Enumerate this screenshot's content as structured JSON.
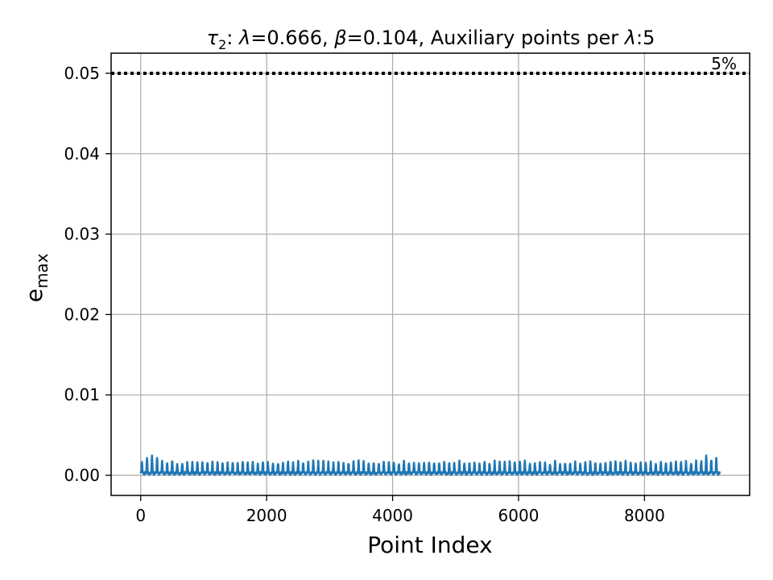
{
  "chart_data": {
    "type": "line",
    "title": {
      "tau_symbol": "τ",
      "tau_subscript": "2",
      "lambda_symbol": "λ",
      "beta_symbol": "β",
      "part_colon": ": ",
      "part_lambda_value": "=0.666, ",
      "part_beta_value": "=0.104, Auxiliary points per ",
      "part_tail": ":5"
    },
    "xlabel": "Point Index",
    "ylabel": "e",
    "ylabel_subscript": "max",
    "xlim": [
      -470,
      9670
    ],
    "ylim": [
      -0.0025,
      0.0525
    ],
    "xticks": [
      0,
      2000,
      4000,
      6000,
      8000
    ],
    "xtick_labels": [
      "0",
      "2000",
      "4000",
      "6000",
      "8000"
    ],
    "yticks": [
      0.0,
      0.01,
      0.02,
      0.03,
      0.04,
      0.05
    ],
    "ytick_labels": [
      "0.00",
      "0.01",
      "0.02",
      "0.03",
      "0.04",
      "0.05"
    ],
    "grid": true,
    "threshold": {
      "y": 0.05,
      "label": "5%",
      "style": "dotted",
      "color": "#000000"
    },
    "series": [
      {
        "color": "#1f77b4",
        "x_range": [
          0,
          9200
        ],
        "baseline": 0.0002,
        "typical_peak": 0.0016,
        "max_peak": 0.0025,
        "oscillation_period": 80
      }
    ],
    "colors": {
      "series": "#1f77b4",
      "grid": "#b0b0b0",
      "axes": "#000000"
    }
  }
}
